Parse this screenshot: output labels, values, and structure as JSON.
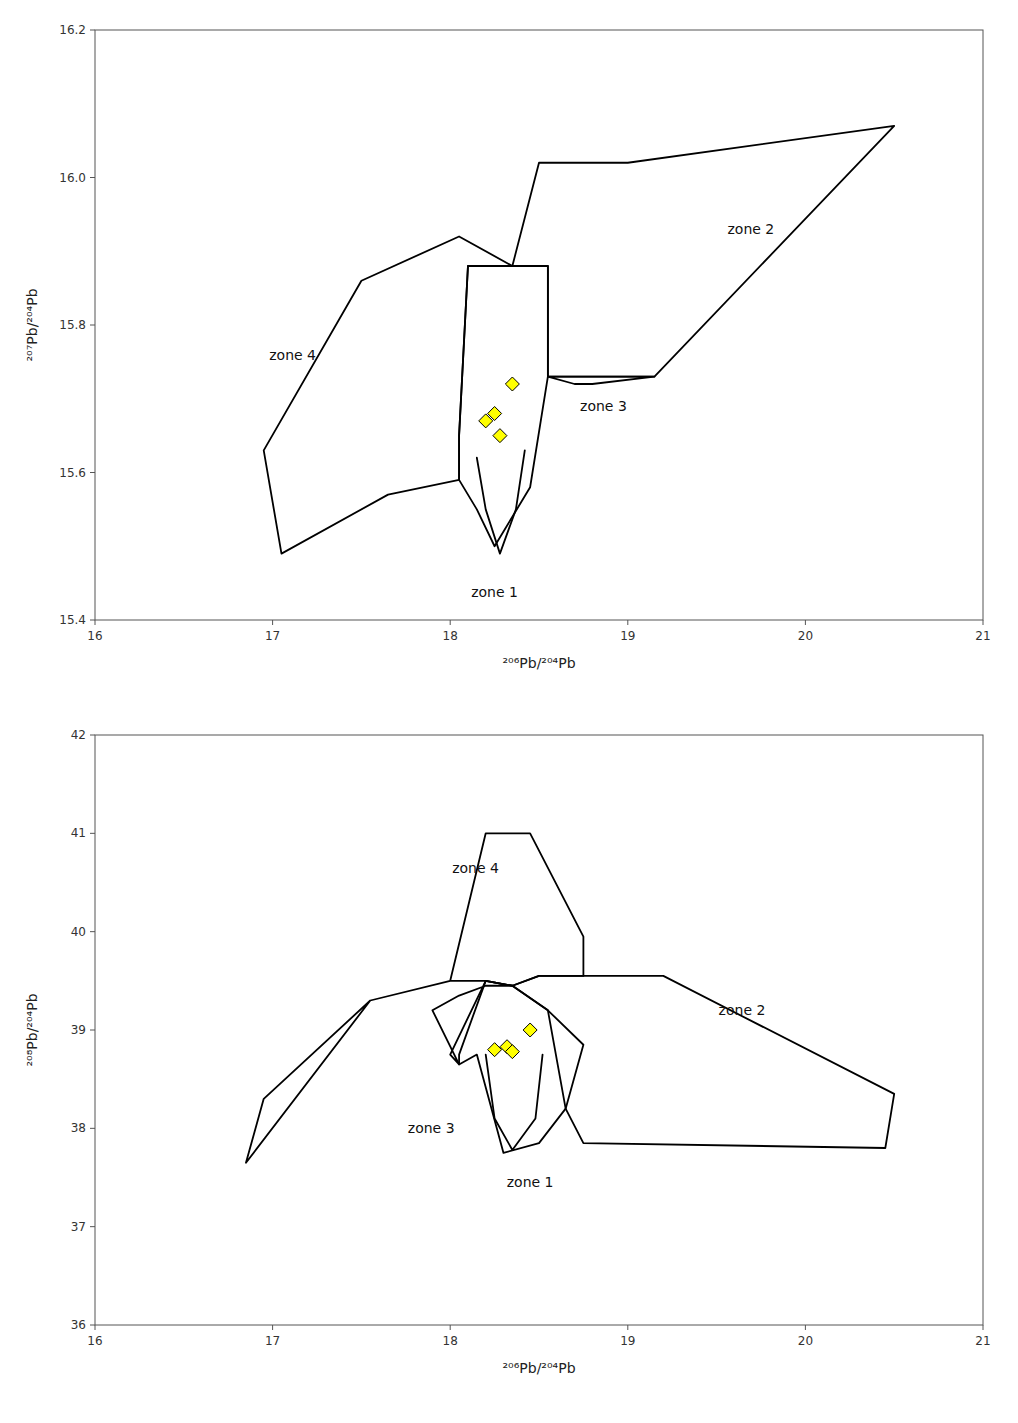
{
  "chart_data": [
    {
      "type": "line",
      "x_label": "²⁰⁶Pb/²⁰⁴Pb",
      "y_label": "²⁰⁷Pb/²⁰⁴Pb",
      "xlim": [
        16,
        21
      ],
      "ylim": [
        15.4,
        16.2
      ],
      "xticks": [
        16,
        17,
        18,
        19,
        20,
        21
      ],
      "yticks": [
        15.4,
        15.6,
        15.8,
        {
          "value": 16.0,
          "label": "16.0"
        },
        16.2
      ],
      "grid": false,
      "series": [
        {
          "type": "line",
          "color": "#000000",
          "x": [
            18.1,
            18.2,
            18.35,
            18.5,
            18.55,
            18.55,
            18.45,
            18.25,
            18.15,
            18.05,
            18.05,
            18.1
          ],
          "values": [
            15.88,
            15.88,
            15.88,
            15.88,
            15.88,
            15.73,
            15.58,
            15.5,
            15.55,
            15.59,
            15.65,
            15.88
          ]
        },
        {
          "type": "line",
          "color": "#000000",
          "x": [
            18.35,
            18.5,
            18.6,
            18.9,
            19.0,
            20.5,
            19.15,
            18.7,
            18.55,
            18.55,
            18.35
          ],
          "values": [
            15.88,
            16.02,
            16.02,
            16.02,
            16.02,
            16.07,
            15.73,
            15.73,
            15.73,
            15.88,
            15.88
          ]
        },
        {
          "type": "line",
          "color": "#000000",
          "x": [
            18.55,
            18.7,
            19.15,
            18.8,
            18.7,
            18.55
          ],
          "values": [
            15.73,
            15.73,
            15.73,
            15.72,
            15.72,
            15.73
          ]
        },
        {
          "type": "line",
          "color": "#000000",
          "x": [
            17.05,
            16.95,
            17.5,
            18.05,
            18.35,
            18.1,
            18.05,
            18.05,
            17.65,
            17.05
          ],
          "values": [
            15.49,
            15.63,
            15.86,
            15.92,
            15.88,
            15.88,
            15.65,
            15.59,
            15.57,
            15.49
          ]
        },
        {
          "type": "line",
          "color": "#000000",
          "x": [
            18.15,
            18.2,
            18.28,
            18.37,
            18.42
          ],
          "values": [
            15.62,
            15.55,
            15.49,
            15.55,
            15.63
          ]
        },
        {
          "type": "scatter",
          "marker": "diamond",
          "color": "#FFFF00",
          "x": [
            18.35,
            18.25,
            18.2,
            18.28
          ],
          "values": [
            15.72,
            15.68,
            15.67,
            15.65
          ]
        }
      ],
      "annotations": [
        {
          "text": "zone 1",
          "x": 18.25,
          "y": 15.45
        },
        {
          "text": "zone 2",
          "x": 19.55,
          "y": 15.93
        },
        {
          "text": "zone 3",
          "x": 18.72,
          "y": 15.69
        },
        {
          "text": "zone 4",
          "x": 16.97,
          "y": 15.76
        }
      ]
    },
    {
      "type": "line",
      "x_label": "²⁰⁶Pb/²⁰⁴Pb",
      "y_label": "²⁰⁸Pb/²⁰⁴Pb",
      "xlim": [
        16,
        21
      ],
      "ylim": [
        36,
        42
      ],
      "xticks": [
        16,
        17,
        18,
        19,
        20,
        21
      ],
      "yticks": [
        36,
        37,
        38,
        39,
        40,
        41,
        42
      ],
      "grid": false,
      "series": [
        {
          "type": "line",
          "color": "#000000",
          "x": [
            18.15,
            18.05,
            18.05,
            18.2,
            18.35,
            18.55,
            18.75,
            18.65,
            18.5,
            18.3,
            18.15
          ],
          "values": [
            38.75,
            38.65,
            38.75,
            39.5,
            39.45,
            39.2,
            38.85,
            38.2,
            37.85,
            37.75,
            38.75
          ]
        },
        {
          "type": "line",
          "color": "#000000",
          "x": [
            18.35,
            18.5,
            18.75,
            19.2,
            20.5,
            20.45,
            18.75,
            18.65,
            18.55,
            18.35
          ],
          "values": [
            39.45,
            39.55,
            39.55,
            39.55,
            38.35,
            37.8,
            37.85,
            38.2,
            39.2,
            39.45
          ]
        },
        {
          "type": "line",
          "color": "#000000",
          "x": [
            18.05,
            18.0,
            18.2,
            18.35,
            18.2,
            18.05,
            17.9,
            18.05
          ],
          "values": [
            38.65,
            38.75,
            39.5,
            39.45,
            39.45,
            39.35,
            39.2,
            38.65
          ]
        },
        {
          "type": "line",
          "color": "#000000",
          "x": [
            16.85,
            16.95,
            17.55,
            18.0,
            18.2,
            18.45,
            18.75,
            18.75,
            18.5,
            18.35,
            18.2,
            18.0,
            17.55,
            16.85
          ],
          "values": [
            37.65,
            38.3,
            39.3,
            39.5,
            41.0,
            41.0,
            39.95,
            39.55,
            39.55,
            39.45,
            39.5,
            39.5,
            39.3,
            37.65
          ]
        },
        {
          "type": "line",
          "color": "#000000",
          "x": [
            18.2,
            18.25,
            18.35,
            18.48,
            18.52
          ],
          "values": [
            38.75,
            38.1,
            37.78,
            38.1,
            38.75
          ]
        },
        {
          "type": "scatter",
          "marker": "diamond",
          "color": "#FFFF00",
          "x": [
            18.45,
            18.32,
            18.25,
            18.35
          ],
          "values": [
            39.0,
            38.83,
            38.8,
            38.78
          ]
        }
      ],
      "annotations": [
        {
          "text": "zone 1",
          "x": 18.45,
          "y": 37.55
        },
        {
          "text": "zone 2",
          "x": 19.5,
          "y": 39.2
        },
        {
          "text": "zone 3",
          "x": 17.75,
          "y": 38.0
        },
        {
          "text": "zone 4",
          "x": 18.0,
          "y": 40.65
        }
      ]
    }
  ]
}
